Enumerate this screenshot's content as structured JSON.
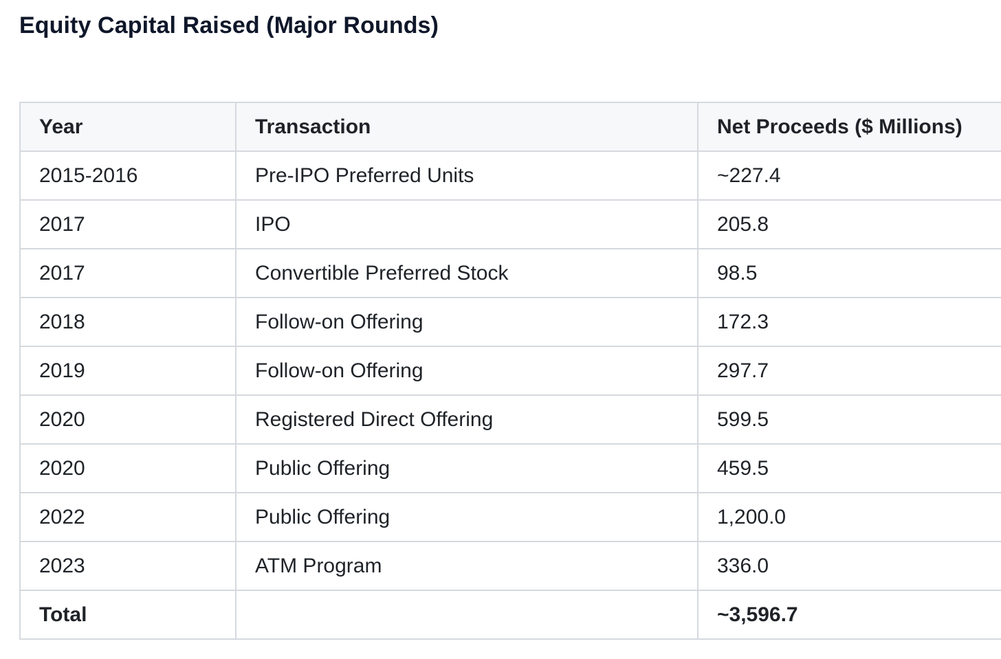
{
  "title": "Equity Capital Raised (Major Rounds)",
  "table": {
    "headers": [
      "Year",
      "Transaction",
      "Net Proceeds ($ Millions)"
    ],
    "rows": [
      {
        "year": "2015-2016",
        "transaction": "Pre-IPO Preferred Units",
        "net": "~227.4"
      },
      {
        "year": "2017",
        "transaction": "IPO",
        "net": "205.8"
      },
      {
        "year": "2017",
        "transaction": "Convertible Preferred Stock",
        "net": "98.5"
      },
      {
        "year": "2018",
        "transaction": "Follow-on Offering",
        "net": "172.3"
      },
      {
        "year": "2019",
        "transaction": "Follow-on Offering",
        "net": "297.7"
      },
      {
        "year": "2020",
        "transaction": "Registered Direct Offering",
        "net": "599.5"
      },
      {
        "year": "2020",
        "transaction": "Public Offering",
        "net": "459.5"
      },
      {
        "year": "2022",
        "transaction": "Public Offering",
        "net": "1,200.0"
      },
      {
        "year": "2023",
        "transaction": "ATM Program",
        "net": "336.0"
      }
    ],
    "total": {
      "label": "Total",
      "transaction": "",
      "net": "~3,596.7"
    }
  }
}
